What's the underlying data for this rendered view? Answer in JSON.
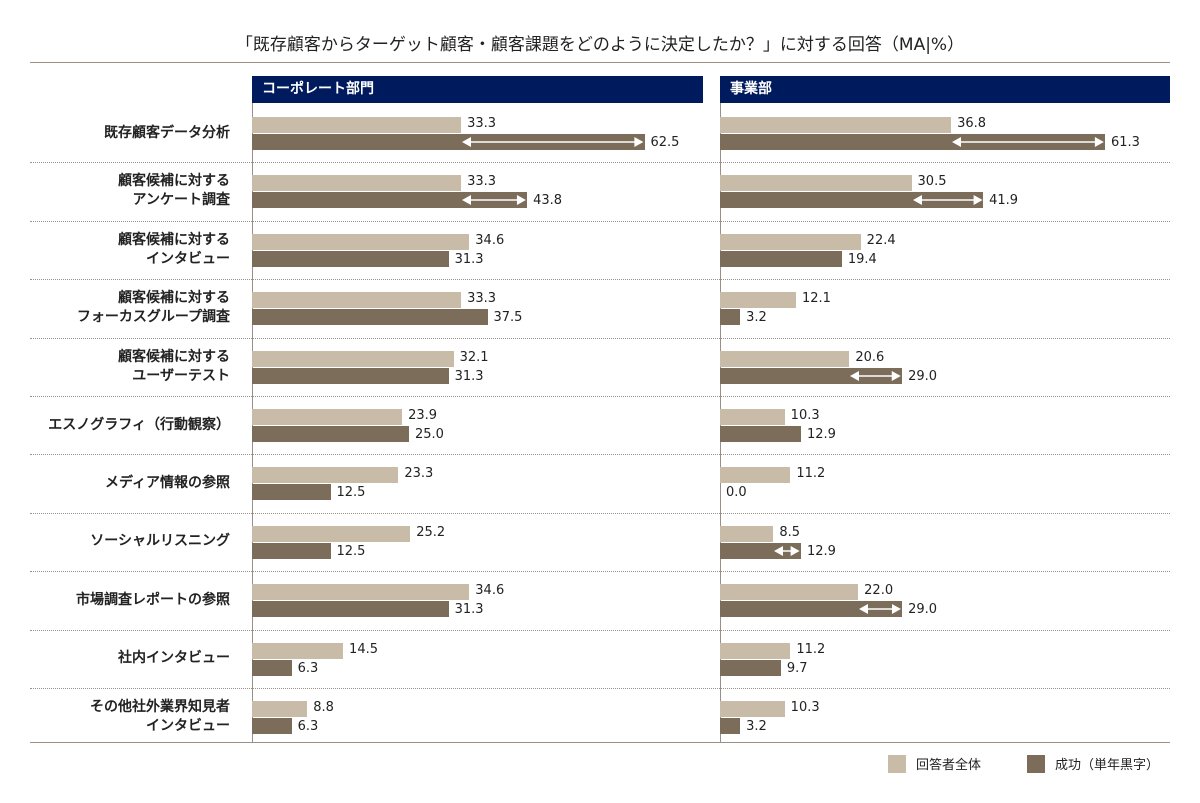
{
  "chart_data": {
    "type": "bar",
    "title": "「既存顧客からターゲット顧客・顧客課題をどのように決定したか？」に対する回答（MA|%）",
    "categories": [
      "既存顧客データ分析",
      "顧客候補に対する\nアンケート調査",
      "顧客候補に対する\nインタビュー",
      "顧客候補に対する\nフォーカスグループ調査",
      "顧客候補に対する\nユーザーテスト",
      "エスノグラフィ（行動観察）",
      "メディア情報の参照",
      "ソーシャルリスニング",
      "市場調査レポートの参照",
      "社内インタビュー",
      "その他社外業界知見者\nインタビュー"
    ],
    "legend": [
      "回答者全体",
      "成功（単年黒字）"
    ],
    "colors": {
      "all": "#c8bca8",
      "success": "#7b6d5a",
      "header": "#001a5e"
    },
    "panels": [
      {
        "name": "コーポレート部門",
        "series": [
          {
            "name": "回答者全体",
            "values": [
              33.3,
              33.3,
              34.6,
              33.3,
              32.1,
              23.9,
              23.3,
              25.2,
              34.6,
              14.5,
              8.8
            ]
          },
          {
            "name": "成功（単年黒字）",
            "values": [
              62.5,
              43.8,
              31.3,
              37.5,
              31.3,
              25.0,
              12.5,
              12.5,
              31.3,
              6.3,
              6.3
            ]
          }
        ],
        "difference_arrows": [
          true,
          true,
          false,
          false,
          false,
          false,
          false,
          false,
          false,
          false,
          false
        ]
      },
      {
        "name": "事業部",
        "series": [
          {
            "name": "回答者全体",
            "values": [
              36.8,
              30.5,
              22.4,
              12.1,
              20.6,
              10.3,
              11.2,
              8.5,
              22.0,
              11.2,
              10.3
            ]
          },
          {
            "name": "成功（単年黒字）",
            "values": [
              61.3,
              41.9,
              19.4,
              3.2,
              29.0,
              12.9,
              0.0,
              12.9,
              29.0,
              9.7,
              3.2
            ]
          }
        ],
        "difference_arrows": [
          true,
          true,
          false,
          false,
          true,
          false,
          false,
          true,
          true,
          false,
          false
        ]
      }
    ],
    "xlim": [
      0,
      72
    ],
    "legend_position": "bottom-right",
    "grid": false
  }
}
